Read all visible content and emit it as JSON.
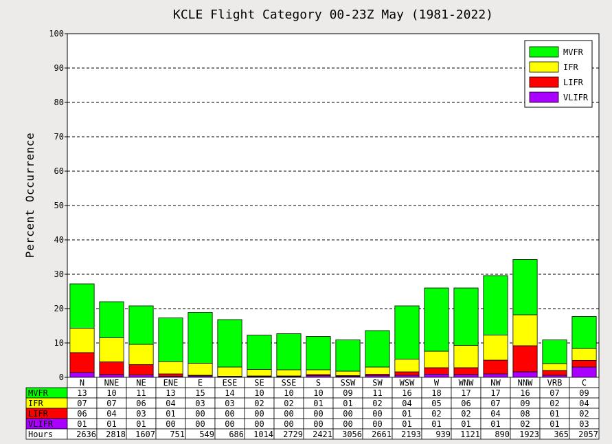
{
  "chart_data": {
    "type": "bar",
    "stacked": true,
    "title": "KCLE Flight Category 00-23Z May (1981-2022)",
    "ylabel": "Percent Occurrence",
    "ylim": [
      0,
      100
    ],
    "yticks": [
      0,
      10,
      20,
      30,
      40,
      50,
      60,
      70,
      80,
      90,
      100
    ],
    "grid": "horizontal dashed",
    "legend_position": "top-right",
    "categories": [
      "N",
      "NNE",
      "NE",
      "ENE",
      "E",
      "ESE",
      "SE",
      "SSE",
      "S",
      "SSW",
      "SW",
      "WSW",
      "W",
      "WNW",
      "NW",
      "NNW",
      "VRB",
      "C"
    ],
    "series": [
      {
        "name": "VLIFR",
        "color": "#aa00ff",
        "values": [
          1.4,
          0.8,
          0.7,
          0.3,
          0.4,
          0.2,
          0.2,
          0.2,
          0.5,
          0.3,
          0.5,
          0.6,
          0.9,
          0.8,
          1.0,
          1.6,
          0.6,
          3.0
        ]
      },
      {
        "name": "LIFR",
        "color": "#ff0000",
        "values": [
          5.8,
          3.7,
          3.0,
          0.7,
          0.2,
          0.1,
          0.2,
          0.2,
          0.3,
          0.2,
          0.4,
          1.0,
          1.9,
          2.0,
          4.0,
          7.6,
          1.4,
          1.9
        ]
      },
      {
        "name": "IFR",
        "color": "#ffff00",
        "values": [
          7.1,
          7.0,
          5.9,
          3.6,
          3.5,
          2.7,
          1.9,
          1.8,
          1.4,
          1.3,
          2.1,
          3.7,
          4.8,
          6.5,
          7.3,
          9.0,
          2.0,
          3.5
        ]
      },
      {
        "name": "MVFR",
        "color": "#00ff00",
        "values": [
          12.9,
          10.5,
          11.2,
          12.7,
          14.8,
          13.8,
          10.0,
          10.5,
          9.7,
          9.1,
          10.6,
          15.5,
          18.4,
          16.7,
          17.3,
          16.1,
          6.9,
          9.3
        ]
      }
    ],
    "table": {
      "rows": [
        {
          "label": "MVFR",
          "color": "#00ff00",
          "values": [
            "13",
            "10",
            "11",
            "13",
            "15",
            "14",
            "10",
            "10",
            "10",
            "09",
            "11",
            "16",
            "18",
            "17",
            "17",
            "16",
            "07",
            "09"
          ]
        },
        {
          "label": "IFR",
          "color": "#ffff00",
          "values": [
            "07",
            "07",
            "06",
            "04",
            "03",
            "03",
            "02",
            "02",
            "01",
            "01",
            "02",
            "04",
            "05",
            "06",
            "07",
            "09",
            "02",
            "04"
          ]
        },
        {
          "label": "LIFR",
          "color": "#ff0000",
          "values": [
            "06",
            "04",
            "03",
            "01",
            "00",
            "00",
            "00",
            "00",
            "00",
            "00",
            "00",
            "01",
            "02",
            "02",
            "04",
            "08",
            "01",
            "02"
          ]
        },
        {
          "label": "VLIFR",
          "color": "#aa00ff",
          "values": [
            "01",
            "01",
            "01",
            "00",
            "00",
            "00",
            "00",
            "00",
            "00",
            "00",
            "00",
            "01",
            "01",
            "01",
            "01",
            "02",
            "01",
            "03"
          ]
        }
      ],
      "hours_label": "Hours",
      "hours": [
        "2636",
        "2818",
        "1607",
        "751",
        "549",
        "686",
        "1014",
        "2729",
        "2421",
        "3056",
        "2661",
        "2193",
        "939",
        "1121",
        "890",
        "1923",
        "365",
        "2057"
      ]
    }
  }
}
